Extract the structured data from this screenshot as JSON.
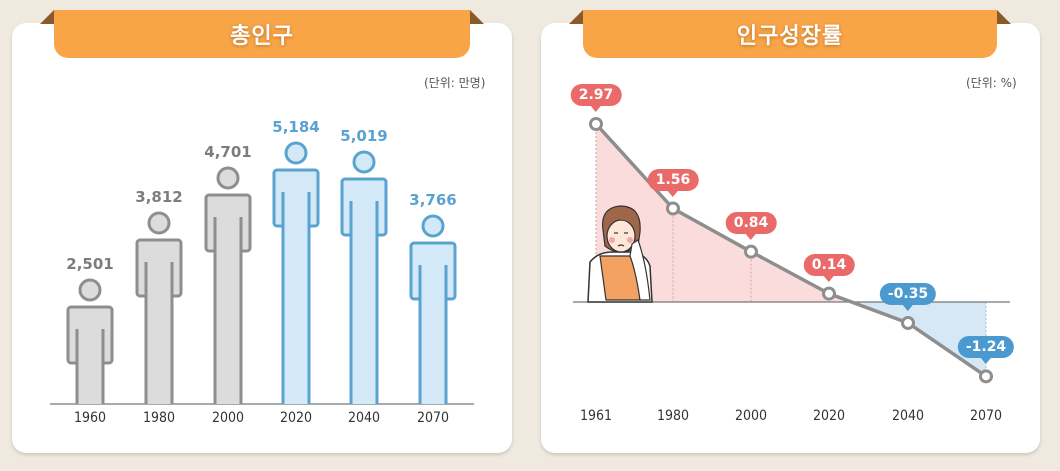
{
  "colors": {
    "background": "#efe9df",
    "ribbon": "#f8a548",
    "gray_fill": "#dcdcdd",
    "gray_stroke": "#8e8e8f",
    "blue_fill": "#d3e9f7",
    "blue_stroke": "#5aa3d1",
    "red_bubble": "#e96a69",
    "blue_bubble": "#4a9ad0",
    "pink_area": "#fbdcdc",
    "blue_area": "#d6e8f5"
  },
  "left_panel": {
    "title": "총인구",
    "unit": "(단위: 만명)"
  },
  "right_panel": {
    "title": "인구성장률",
    "unit": "(단위: %)"
  },
  "chart_data": [
    {
      "type": "bar",
      "title": "총인구",
      "unit": "만명",
      "categories": [
        "1960",
        "1980",
        "2000",
        "2020",
        "2040",
        "2070"
      ],
      "values": [
        2501,
        3812,
        4701,
        5184,
        5019,
        3766
      ],
      "value_labels": [
        "2,501",
        "3,812",
        "4,701",
        "5,184",
        "5,019",
        "3,766"
      ],
      "series_style": [
        "actual",
        "actual",
        "actual",
        "projected",
        "projected",
        "projected"
      ],
      "xlabel": "",
      "ylabel": "",
      "grid": false,
      "bar_shape": "person pictogram"
    },
    {
      "type": "line",
      "title": "인구성장률",
      "unit": "%",
      "categories": [
        "1961",
        "1980",
        "2000",
        "2020",
        "2040",
        "2070"
      ],
      "values": [
        2.97,
        1.56,
        0.84,
        0.14,
        -0.35,
        -1.24
      ],
      "value_labels": [
        "2.97",
        "1.56",
        "0.84",
        "0.14",
        "-0.35",
        "-1.24"
      ],
      "area_fill": {
        "positive": "#fbdcdc",
        "negative": "#d6e8f5"
      },
      "baseline": 0,
      "xlabel": "",
      "ylabel": "",
      "grid": false
    }
  ]
}
